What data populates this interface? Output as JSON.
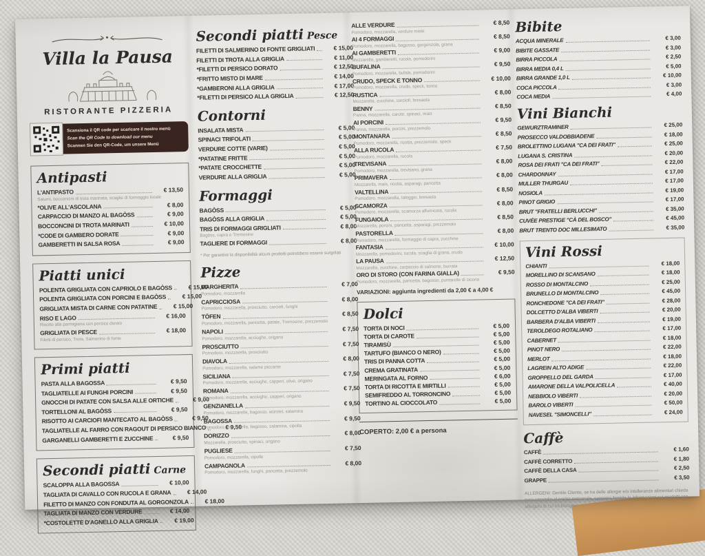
{
  "currency": "€",
  "header": {
    "restaurant_name": "Villa la Pausa",
    "subtitle": "RISTORANTE  PIZZERIA",
    "qr_lines": [
      "Scansiona il QR code per scaricare il nostro menù",
      "Scan the QR Code to download our menu",
      "Scannen Sie den QR-Code, um unsere Menü"
    ]
  },
  "sections": {
    "antipasti": {
      "title": "Antipasti",
      "items": [
        {
          "name": "L'ANTIPASTO",
          "price": "13,50",
          "desc": "Salumi, bocconcini di trota marinata, scaglie di formaggio locale"
        },
        {
          "name": "*OLIVE ALL'ASCOLANA",
          "price": "8,00"
        },
        {
          "name": "CARPACCIO DI MANZO AL BAGÒSS",
          "price": "9,00"
        },
        {
          "name": "BOCCONCINI DI TROTA MARINATI",
          "price": "10,00"
        },
        {
          "name": "*CODE DI GAMBERO DORATE",
          "price": "9,00"
        },
        {
          "name": "GAMBERETTI IN SALSA ROSA",
          "price": "9,00"
        }
      ]
    },
    "piatti_unici": {
      "title": "Piatti unici",
      "items": [
        {
          "name": "POLENTA GRIGLIATA CON CAPRIOLO E BAGÒSS",
          "price": "15,00"
        },
        {
          "name": "POLENTA GRIGLIATA CON PORCINI E BAGÒSS",
          "price": "15,00"
        },
        {
          "name": "GRIGLIATA MISTA DI CARNE CON PATATINE",
          "price": "15,00"
        },
        {
          "name": "RISO E LAGO",
          "price": "16,00",
          "desc": "Risotto alla parmigiana con persico dorato"
        },
        {
          "name": "GRIGLIATA DI PESCE",
          "price": "18,00",
          "desc": "Filetti di persico, Trota, Salmerino di fonte"
        }
      ]
    },
    "primi_piatti": {
      "title": "Primi piatti",
      "items": [
        {
          "name": "PASTA ALLA BAGOSSA",
          "price": "9,50"
        },
        {
          "name": "TAGLIATELLE AI FUNGHI PORCINI",
          "price": "9,50"
        },
        {
          "name": "GNOCCHI DI PATATE CON SALSA ALLE ORTICHE",
          "price": "9,00"
        },
        {
          "name": "TORTELLONI AL BAGÒSS",
          "price": "9,50"
        },
        {
          "name": "RISOTTO AI CARCIOFI MANTECATO AL BAGÒSS",
          "price": "9,50"
        },
        {
          "name": "TAGLIATELLE AL FARRO CON RAGOUT DI PERSICO BIANCO",
          "price": "9,50"
        },
        {
          "name": "GARGANELLI GAMBERETTI E ZUCCHINE",
          "price": "9,50"
        }
      ]
    },
    "secondi_carne": {
      "title": "Secondi piatti",
      "suffix": "Carne",
      "items": [
        {
          "name": "SCALOPPA ALLA BAGOSSA",
          "price": "10,00"
        },
        {
          "name": "TAGLIATA DI CAVALLO CON RUCOLA E GRANA",
          "price": "14,00"
        },
        {
          "name": "FILETTO DI MANZO CON FONDUTA AL GORGONZOLA",
          "price": "18,00"
        },
        {
          "name": "TAGLIATA DI MANZO CON VERDURE",
          "price": "14,00"
        },
        {
          "name": "*COSTOLETTE D'AGNELLO ALLA GRIGLIA",
          "price": "19,00"
        }
      ]
    },
    "secondi_pesce": {
      "title": "Secondi piatti",
      "suffix": "Pesce",
      "items": [
        {
          "name": "FILETTI DI SALMERINO DI FONTE GRIGLIATI",
          "price": "15,00"
        },
        {
          "name": "FILETTI DI TROTA ALLA GRIGLIA",
          "price": "11,00"
        },
        {
          "name": "*FILETTI DI PERSICO DORATO",
          "price": "12,50"
        },
        {
          "name": "*FRITTO MISTO DI MARE",
          "price": "14,00"
        },
        {
          "name": "*GAMBERONI ALLA GRIGLIA",
          "price": "17,00"
        },
        {
          "name": "*FILETTI DI PERSICO ALLA GRIGLIA",
          "price": "12,50"
        }
      ]
    },
    "contorni": {
      "title": "Contorni",
      "items": [
        {
          "name": "INSALATA MISTA",
          "price": "5,00"
        },
        {
          "name": "SPINACI TRIFOLATI",
          "price": "5,00"
        },
        {
          "name": "VERDURE COTTE (VARIE)",
          "price": "5,00"
        },
        {
          "name": "*PATATINE FRITTE",
          "price": "5,00"
        },
        {
          "name": "*PATATE CROCCHETTE",
          "price": "5,00"
        },
        {
          "name": "VERDURE ALLA GRIGLIA",
          "price": "5,00"
        }
      ]
    },
    "formaggi": {
      "title": "Formaggi",
      "footnote": "* Per garantire la disponibilità alcuni prodotti potrebbero essere surgelati",
      "items": [
        {
          "name": "BAGÒSS",
          "price": "5,00"
        },
        {
          "name": "BAGÒSS ALLA GRIGLIA",
          "price": "5,00"
        },
        {
          "name": "TRIS DI FORMAGGI GRIGLIATI",
          "price": "8,00",
          "desc": "Bagòss, capra e Tremosine"
        },
        {
          "name": "TAGLIERE DI FORMAGGI",
          "price": "8,00"
        }
      ]
    },
    "pizze": {
      "title": "Pizze",
      "items": [
        {
          "name": "MARGHERITA",
          "price": "7,00",
          "desc": "Pomodoro, mozzarella"
        },
        {
          "name": "CAPRICCIOSA",
          "price": "8,00",
          "desc": "Pomodoro, mozzarella, prosciutto, carciofi, funghi"
        },
        {
          "name": "TÖFEN",
          "price": "8,50",
          "desc": "Pomodoro, mozzarella, pancetta, patate, Tremosine, prezzemolo"
        },
        {
          "name": "NAPOLI",
          "price": "7,50",
          "desc": "Pomodoro, mozzarella, acciughe, origano"
        },
        {
          "name": "PROSCIUTTO",
          "price": "7,50",
          "desc": "Pomodoro, mozzarella, prosciutto"
        },
        {
          "name": "DIAVOLA",
          "price": "8,00",
          "desc": "Pomodoro, mozzarella, salame piccante"
        },
        {
          "name": "SICILIANA",
          "price": "7,50",
          "desc": "Pomodoro, mozzarella, acciughe, capperi, olive, origano"
        },
        {
          "name": "ROMANA",
          "price": "7,50",
          "desc": "Pomodoro, mozzarella, acciughe, capperi, origano"
        },
        {
          "name": "GENZIANELLA",
          "price": "9,50",
          "desc": "Pomodoro, mozzarella, bagosso, würstel, salamina"
        },
        {
          "name": "BAGOSSA",
          "price": "9,50",
          "desc": "Pomodoro, mozzarella, bagosso, salamina, cipolla"
        },
        {
          "name": "DORIZZO",
          "price": "8,00",
          "desc": "Mozzarella, prosciutto, spinaci, origano"
        },
        {
          "name": "PUGLIESE",
          "price": "7,50",
          "desc": "Pomodoro, mozzarella, cipolle"
        },
        {
          "name": "CAMPAGNOLA",
          "price": "8,00",
          "desc": "Pomodoro, mozzarella, funghi, pancetta, prezzemolo"
        }
      ]
    },
    "pizze_2": {
      "title": "",
      "items": [
        {
          "name": "ALLE VERDURE",
          "price": "8,50",
          "desc": "Pomodoro, mozzarella, verdure miste"
        },
        {
          "name": "AI 4 FORMAGGI",
          "price": "8,50",
          "desc": "Pomodoro, mozzarella, bagosso, gorgonzola, grana"
        },
        {
          "name": "AI GAMBERETTI",
          "price": "9,00",
          "desc": "Mozzarella, gamberetti, rucola, pomodorini"
        },
        {
          "name": "BUFALINA",
          "price": "9,50",
          "desc": "Pomodoro, mozzarella, bufala, pomodorini"
        },
        {
          "name": "CRUDO, SPECK E TONNO",
          "price": "10,00",
          "desc": "Pomodoro, mozzarella, crudo, speck, tonno"
        },
        {
          "name": "RUSTICA",
          "price": "8,00",
          "desc": "Mozzarella, zucchine, carciofi, bresaola"
        },
        {
          "name": "BENNY",
          "price": "8,50",
          "desc": "Panna, mozzarella, carote, spinaci, mais"
        },
        {
          "name": "AI PORCINI",
          "price": "9,50",
          "desc": "Panna, mozzarella, porcini, prezzemolo"
        },
        {
          "name": "MONTANARA",
          "price": "8,50",
          "desc": "Pomodoro, mozzarella, ricotta, prezzemolo, speck"
        },
        {
          "name": "ALLA RUCOLA",
          "price": "7,50",
          "desc": "Pomodoro, mozzarella, rucola"
        },
        {
          "name": "TREVISANA",
          "price": "8,00",
          "desc": "Pomodoro, mozzarella, trevisano, grana"
        },
        {
          "name": "PRIMAVERA",
          "price": "8,00",
          "desc": "Mozzarella, mais, ricotta, asparagi, pancetta"
        },
        {
          "name": "VALTELLINA",
          "price": "8,50",
          "desc": "Pomodoro, mozzarella, taleggio, bresaola"
        },
        {
          "name": "SCAMORZA",
          "price": "8,00",
          "desc": "Pomodoro, mozzarella, scamorza affumicata, rucola"
        },
        {
          "name": "FUNGAIOLA",
          "price": "8,50",
          "desc": "Mozzarella, porcini, pancetta, asparagi, prezzemolo"
        },
        {
          "name": "PASTORELLA",
          "price": "8,00",
          "desc": "Pomodoro, mozzarella, formaggio di capra, zucchine"
        },
        {
          "name": "FANTASIA",
          "price": "10,00",
          "desc": "Mozzarella, pomodorini, rucola, scaglia di grana, crudo"
        },
        {
          "name": "LA PAUSA",
          "price": "12,50",
          "desc": "Mozzarella, zucchine, carpaccio di salmone, burrata"
        },
        {
          "name": "ORO DI STORO (CON FARINA GIALLA)",
          "price": "9,50",
          "desc": "Pomodoro, mozzarella, pancetta, bagosso, puntarelle di cicoria"
        }
      ]
    },
    "dolci": {
      "title": "Dolci",
      "items": [
        {
          "name": "TORTA DI NOCI",
          "price": "5,00"
        },
        {
          "name": "TORTA DI CAROTE",
          "price": "5,00"
        },
        {
          "name": "TIRAMISÙ",
          "price": "5,00"
        },
        {
          "name": "TARTUFO (BIANCO O NERO)",
          "price": "5,00"
        },
        {
          "name": "TRIS DI PANNA COTTA",
          "price": "5,00"
        },
        {
          "name": "CREMA GRATINATA",
          "price": "5,00"
        },
        {
          "name": "MERINGATA AL FORNO",
          "price": "6,00"
        },
        {
          "name": "TORTA DI RICOTTA E MIRTILLI",
          "price": "5,00"
        },
        {
          "name": "SEMIFREDDO AL TORRONCINO",
          "price": "5,00"
        },
        {
          "name": "TORTINO AL CIOCCOLATO",
          "price": "5,00"
        }
      ]
    },
    "bibite": {
      "title": "Bibite",
      "items": [
        {
          "name": "ACQUA MINERALE",
          "price": "3,00"
        },
        {
          "name": "BIBITE GASSATE",
          "price": "3,00"
        },
        {
          "name": "BIRRA PICCOLA",
          "price": "2,50"
        },
        {
          "name": "BIRRA MEDIA 0,4 L",
          "price": "5,00"
        },
        {
          "name": "BIRRA GRANDE 1,0 L",
          "price": "10,00"
        },
        {
          "name": "COCA PICCOLA",
          "price": "3,00"
        },
        {
          "name": "COCA MEDIA",
          "price": "4,00"
        }
      ]
    },
    "vini_bianchi": {
      "title": "Vini Bianchi",
      "items": [
        {
          "name": "GEWURZTRAMINER",
          "price": "25,00"
        },
        {
          "name": "PROSECCO VALDOBBIADENE",
          "price": "18,00"
        },
        {
          "name": "BROLETTINO LUGANA \"CA DEI FRATI\"",
          "price": "25,00"
        },
        {
          "name": "LUGANA S. CRISTINA",
          "price": "20,00"
        },
        {
          "name": "ROSA DEI FRATI \"CA DEI FRATI\"",
          "price": "22,00"
        },
        {
          "name": "CHARDONNAY",
          "price": "17,00"
        },
        {
          "name": "MULLER THURGAU",
          "price": "17,00"
        },
        {
          "name": "NOSIOLA",
          "price": "19,00"
        },
        {
          "name": "PINOT GRIGIO",
          "price": "17,00"
        },
        {
          "name": "BRUT \"FRATELLI BERLUCCHI\"",
          "price": "35,00"
        },
        {
          "name": "CUVÉE PRESTIGE \"CÀ DEL BOSCO\"",
          "price": "45,00"
        },
        {
          "name": "BRUT TRENTO DOC MILLESIMATO",
          "price": "35,00"
        }
      ]
    },
    "vini_rossi": {
      "title": "Vini Rossi",
      "items": [
        {
          "name": "CHIANTI",
          "price": "18,00"
        },
        {
          "name": "MORELLINO DI SCANSANO",
          "price": "18,00"
        },
        {
          "name": "ROSSO DI MONTALCINO",
          "price": "25,00"
        },
        {
          "name": "BRUNELLO DI MONTALCINO",
          "price": "45,00"
        },
        {
          "name": "RONCHEDONE \"CA DEI FRATI\"",
          "price": "28,00"
        },
        {
          "name": "DOLCETTO D'ALBA VIBERTI",
          "price": "20,00"
        },
        {
          "name": "BARBERA D'ALBA VIBERTI",
          "price": "19,00"
        },
        {
          "name": "TEROLDEGO ROTALIANO",
          "price": "17,00"
        },
        {
          "name": "CABERNET",
          "price": "18,00"
        },
        {
          "name": "PINOT NERO",
          "price": "22,00"
        },
        {
          "name": "MERLOT",
          "price": "18,00"
        },
        {
          "name": "LAGREIN ALTO ADIGE",
          "price": "22,00"
        },
        {
          "name": "GROPPELLO DEL GARDA",
          "price": "17,00"
        },
        {
          "name": "AMARONE DELLA VALPOLICELLA",
          "price": "40,00"
        },
        {
          "name": "NEBBIOLO VIBERTI",
          "price": "20,00"
        },
        {
          "name": "BAROLO VIBERTI",
          "price": "50,00"
        },
        {
          "name": "NAVESEL \"SIMONCELLI\"",
          "price": "24,00"
        }
      ]
    },
    "caffe": {
      "title": "Caffè",
      "items": [
        {
          "name": "CAFFÈ",
          "price": "1,60"
        },
        {
          "name": "CAFFÈ CORRETTO",
          "price": "1,80"
        },
        {
          "name": "CAFFÈ DELLA CASA",
          "price": "2,50"
        },
        {
          "name": "GRAPPE",
          "price": "3,50"
        }
      ]
    }
  },
  "notes": {
    "variazioni": "VARIAZIONI: aggiunta ingredienti da 2,00 € a 4,00 €",
    "coperto": "COPERTO: 2,00 € a persona",
    "allergeni": "ALLERGENI: Gentile Cliente, se ha delle allergie e/o intolleranze alimentari chieda pure consiglio al nostro personale, sapremo fornirle le informazioni sui prodotti con allergeni di cui ha bisogno."
  },
  "colors": {
    "paper": "#eae8e4",
    "tablecloth": "#d3d1cc",
    "banner_brown": "#39241f",
    "text_dark": "#35332e",
    "floor_tan": "#cf9a59"
  }
}
